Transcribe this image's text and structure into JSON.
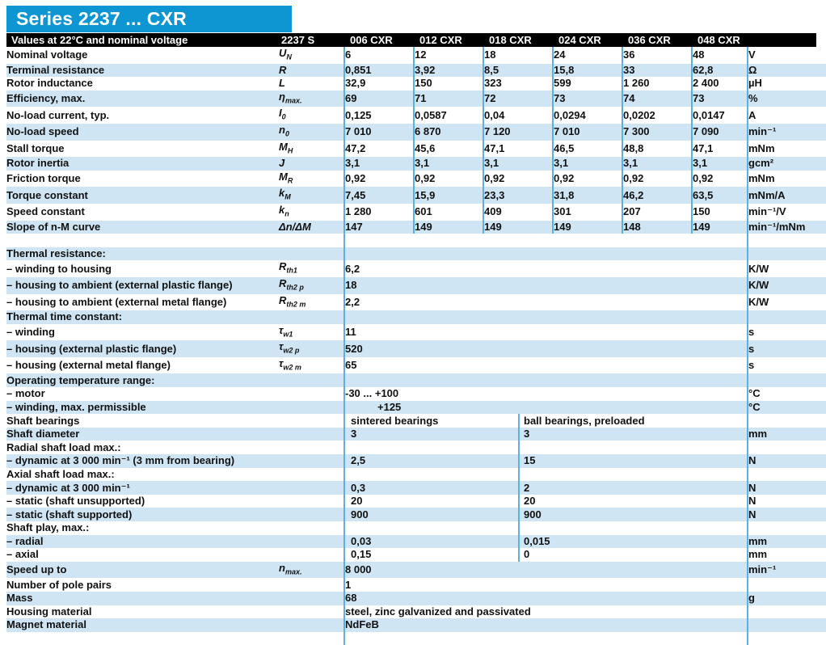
{
  "title": "Series 2237 ... CXR",
  "header": {
    "caption": "Values at 22°C and nominal voltage",
    "series_label": "2237 S",
    "columns": [
      "006 CXR",
      "012 CXR",
      "018 CXR",
      "024 CXR",
      "036 CXR",
      "048 CXR"
    ]
  },
  "colors": {
    "title_bar_blue": "#0e96d2",
    "row_shade_blue": "#cfe5f4",
    "divider_blue": "#5cb1dd",
    "header_bar_black": "#000000",
    "text": "#111111"
  },
  "table": {
    "rows": [
      {
        "t": "d",
        "label": "Nominal voltage",
        "sym": "U",
        "sub": "N",
        "vals": [
          "6",
          "12",
          "18",
          "24",
          "36",
          "48"
        ],
        "unit": "V",
        "bg": 0
      },
      {
        "t": "d",
        "label": "Terminal resistance",
        "sym": "R",
        "sub": "",
        "vals": [
          "0,851",
          "3,92",
          "8,5",
          "15,8",
          "33",
          "62,8"
        ],
        "unit": "Ω",
        "bg": 1
      },
      {
        "t": "d",
        "label": "Rotor inductance",
        "sym": "L",
        "sub": "",
        "vals": [
          "32,9",
          "150",
          "323",
          "599",
          "1 260",
          "2 400"
        ],
        "unit": "µH",
        "bg": 0
      },
      {
        "t": "d",
        "label": "Efficiency, max.",
        "sym": "η",
        "sub": "max.",
        "vals": [
          "69",
          "71",
          "72",
          "73",
          "74",
          "73"
        ],
        "unit": "%",
        "bg": 1
      },
      {
        "t": "d",
        "label": "No-load current, typ.",
        "sym": "I",
        "sub": "0",
        "vals": [
          "0,125",
          "0,0587",
          "0,04",
          "0,0294",
          "0,0202",
          "0,0147"
        ],
        "unit": "A",
        "bg": 0
      },
      {
        "t": "d",
        "label": "No-load speed",
        "sym": "n",
        "sub": "0",
        "vals": [
          "7 010",
          "6 870",
          "7 120",
          "7 010",
          "7 300",
          "7 090"
        ],
        "unit": "min⁻¹",
        "bg": 1
      },
      {
        "t": "d",
        "label": "Stall torque",
        "sym": "M",
        "sub": "H",
        "vals": [
          "47,2",
          "45,6",
          "47,1",
          "46,5",
          "48,8",
          "47,1"
        ],
        "unit": "mNm",
        "bg": 0
      },
      {
        "t": "d",
        "label": "Rotor inertia",
        "sym": "J",
        "sub": "",
        "vals": [
          "3,1",
          "3,1",
          "3,1",
          "3,1",
          "3,1",
          "3,1"
        ],
        "unit": "gcm²",
        "bg": 1
      },
      {
        "t": "d",
        "label": "Friction torque",
        "sym": "M",
        "sub": "R",
        "vals": [
          "0,92",
          "0,92",
          "0,92",
          "0,92",
          "0,92",
          "0,92"
        ],
        "unit": "mNm",
        "bg": 0
      },
      {
        "t": "d",
        "label": "Torque constant",
        "sym": "k",
        "sub": "M",
        "vals": [
          "7,45",
          "15,9",
          "23,3",
          "31,8",
          "46,2",
          "63,5"
        ],
        "unit": "mNm/A",
        "bg": 1
      },
      {
        "t": "d",
        "label": "Speed constant",
        "sym": "k",
        "sub": "n",
        "vals": [
          "1 280",
          "601",
          "409",
          "301",
          "207",
          "150"
        ],
        "unit": "min⁻¹/V",
        "bg": 0
      },
      {
        "t": "d",
        "label": "Slope of n-M curve",
        "sym": "Δn/ΔM",
        "sub": "",
        "vals": [
          "147",
          "149",
          "149",
          "149",
          "148",
          "149"
        ],
        "unit": "min⁻¹/mNm",
        "bg": 1
      },
      {
        "t": "blank",
        "bg": 0
      },
      {
        "t": "s1",
        "label": "Thermal resistance:",
        "val": "",
        "unit": "",
        "bg": 1
      },
      {
        "t": "s1",
        "label": "– winding to housing",
        "sym": "R",
        "sub": "th1",
        "val": "6,2",
        "unit": "K/W",
        "bg": 0
      },
      {
        "t": "s1",
        "label": "– housing to ambient (external plastic flange)",
        "sym": "R",
        "sub": "th2 p",
        "val": "18",
        "unit": "K/W",
        "bg": 1
      },
      {
        "t": "s1",
        "label": "– housing to ambient (external metal flange)",
        "sym": "R",
        "sub": "th2 m",
        "val": "2,2",
        "unit": "K/W",
        "bg": 0
      },
      {
        "t": "s1",
        "label": "Thermal time constant:",
        "val": "",
        "unit": "",
        "bg": 1
      },
      {
        "t": "s1",
        "label": "– winding",
        "sym": "τ",
        "sub": "w1",
        "val": "11",
        "unit": "s",
        "bg": 0
      },
      {
        "t": "s1",
        "label": "– housing (external plastic flange)",
        "sym": "τ",
        "sub": "w2 p",
        "val": "520",
        "unit": "s",
        "bg": 1
      },
      {
        "t": "s1",
        "label": "– housing (external metal flange)",
        "sym": "τ",
        "sub": "w2 m",
        "val": "65",
        "unit": "s",
        "bg": 0
      },
      {
        "t": "s1",
        "label": "Operating temperature range:",
        "val": "",
        "unit": "",
        "bg": 1
      },
      {
        "t": "s1",
        "label": "– motor",
        "val": "-30 ... +100",
        "unit": "°C",
        "bg": 0
      },
      {
        "t": "s1",
        "label": "– winding, max. permissible",
        "val": "+125",
        "unit": "°C",
        "bg": 1,
        "pad": 33
      },
      {
        "t": "s2",
        "label": "Shaft bearings",
        "v1": "sintered bearings",
        "v2": "ball bearings, preloaded",
        "unit": "",
        "bg": 0
      },
      {
        "t": "s2",
        "label": "Shaft diameter",
        "v1": "3",
        "v2": "3",
        "unit": "mm",
        "bg": 1
      },
      {
        "t": "s2",
        "label": "Radial shaft load max.:",
        "v1": "",
        "v2": "",
        "unit": "",
        "bg": 0
      },
      {
        "t": "s2",
        "label": "– dynamic at 3 000 min⁻¹ (3 mm from bearing)",
        "v1": "2,5",
        "v2": "15",
        "unit": "N",
        "bg": 1
      },
      {
        "t": "s2",
        "label": "Axial shaft load max.:",
        "v1": "",
        "v2": "",
        "unit": "",
        "bg": 0
      },
      {
        "t": "s2",
        "label": "– dynamic at 3 000 min⁻¹",
        "v1": "0,3",
        "v2": "2",
        "unit": "N",
        "bg": 1
      },
      {
        "t": "s2",
        "label": "– static (shaft unsupported)",
        "v1": "20",
        "v2": "20",
        "unit": "N",
        "bg": 0
      },
      {
        "t": "s2",
        "label": "– static (shaft supported)",
        "v1": "900",
        "v2": "900",
        "unit": "N",
        "bg": 1
      },
      {
        "t": "s2",
        "label": "Shaft play, max.:",
        "v1": "",
        "v2": "",
        "unit": "",
        "bg": 0
      },
      {
        "t": "s2",
        "label": "– radial",
        "v1": "0,03",
        "v2": "0,015",
        "unit": "mm",
        "bg": 1
      },
      {
        "t": "s2",
        "label": "– axial",
        "v1": "0,15",
        "v2": "0",
        "unit": "mm",
        "bg": 0
      },
      {
        "t": "s1",
        "label": "Speed up to",
        "sym": "n",
        "sub": "max.",
        "val": "8 000",
        "unit": "min⁻¹",
        "bg": 1
      },
      {
        "t": "s1",
        "label": "Number of pole pairs",
        "val": "1",
        "unit": "",
        "bg": 0
      },
      {
        "t": "s1",
        "label": "Mass",
        "val": "68",
        "unit": "g",
        "bg": 1
      },
      {
        "t": "s1",
        "label": "Housing material",
        "val": "steel, zinc galvanized and passivated",
        "unit": "",
        "bg": 0
      },
      {
        "t": "s1",
        "label": "Magnet material",
        "val": "NdFeB",
        "unit": "",
        "bg": 1
      },
      {
        "t": "blank",
        "bg": 0
      }
    ]
  }
}
